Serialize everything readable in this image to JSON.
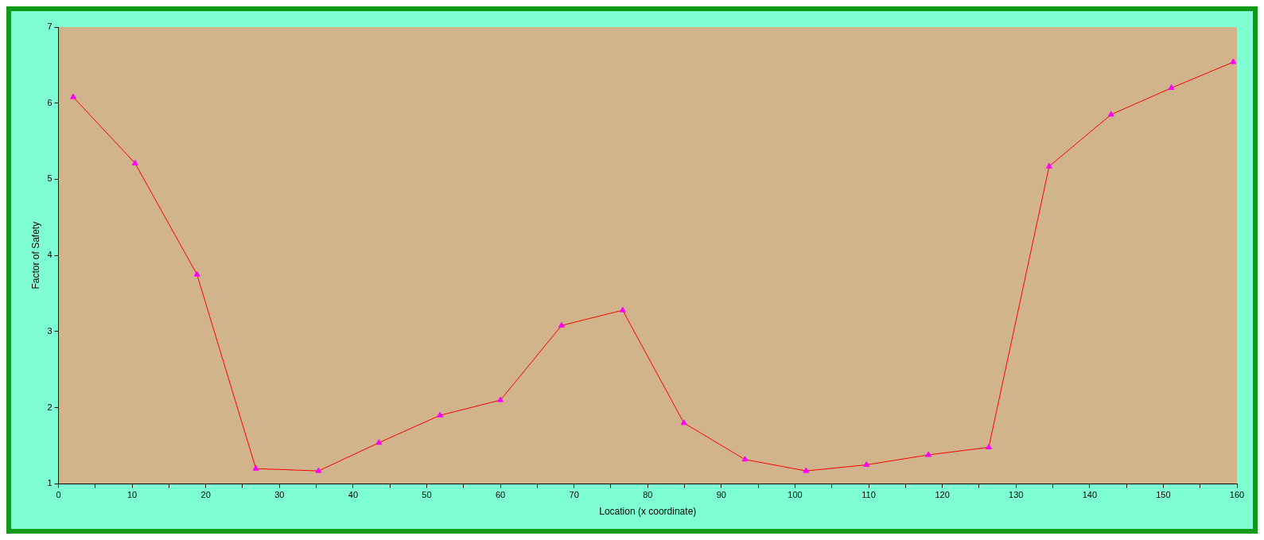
{
  "chart_data": {
    "type": "line",
    "xlabel": "Location (x coordinate)",
    "ylabel": "Factor of Safety",
    "x": [
      2,
      10.4,
      18.8,
      26.8,
      35.3,
      43.5,
      51.8,
      60,
      68.3,
      76.6,
      84.9,
      93.2,
      101.5,
      109.7,
      118.1,
      126.3,
      134.5,
      142.9,
      151.1,
      159.5
    ],
    "series": [
      {
        "color": "#ff0000",
        "values": [
          6.08,
          5.21,
          3.75,
          1.2,
          1.17,
          1.54,
          1.9,
          2.1,
          3.08,
          3.28,
          1.8,
          1.32,
          1.17,
          1.25,
          1.38,
          1.48,
          5.17,
          5.85,
          6.2,
          6.54
        ]
      }
    ],
    "marker": "triangle",
    "legend": false,
    "grid": false,
    "xlim": [
      0,
      160
    ],
    "ylim": [
      1,
      7
    ],
    "xticks": [
      0,
      {
        "value": 5,
        "label": null
      },
      10,
      {
        "value": 15,
        "label": null
      },
      20,
      {
        "value": 25,
        "label": null
      },
      30,
      {
        "value": 35,
        "label": null
      },
      40,
      {
        "value": 45,
        "label": null
      },
      50,
      {
        "value": 55,
        "label": null
      },
      60,
      {
        "value": 65,
        "label": null
      },
      70,
      {
        "value": 75,
        "label": null
      },
      80,
      {
        "value": 85,
        "label": null
      },
      90,
      {
        "value": 95,
        "label": null
      },
      100,
      {
        "value": 105,
        "label": null
      },
      110,
      {
        "value": 115,
        "label": null
      },
      120,
      {
        "value": 125,
        "label": null
      },
      130,
      {
        "value": 135,
        "label": null
      },
      140,
      {
        "value": 145,
        "label": null
      },
      150,
      {
        "value": 155,
        "label": null
      },
      160
    ],
    "yticks": [
      1,
      2,
      3,
      4,
      5,
      6,
      7
    ]
  }
}
